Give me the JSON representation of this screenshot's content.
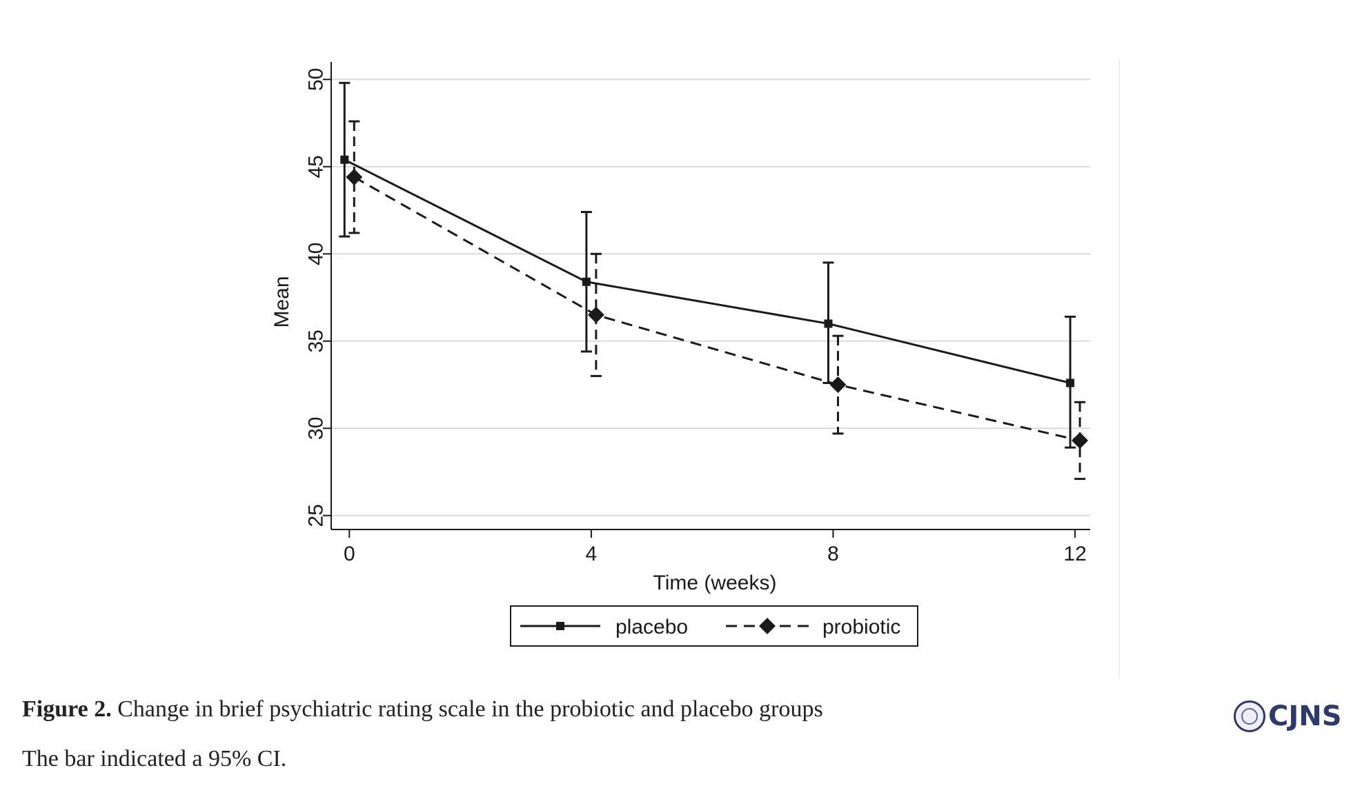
{
  "chart_data": {
    "type": "line",
    "xlabel": "Time (weeks)",
    "ylabel": "Mean",
    "x_ticks": [
      "0",
      "4",
      "8",
      "12"
    ],
    "y_ticks": [
      "25",
      "30",
      "35",
      "40",
      "45",
      "50"
    ],
    "xlim": [
      -0.3,
      12.25
    ],
    "ylim": [
      24.2,
      50.8
    ],
    "grid": true,
    "legend_position": "bottom-center",
    "series": [
      {
        "name": "placebo",
        "style": "solid",
        "marker": "square",
        "color": "#1a1a1a",
        "x_offset": -0.08,
        "x": [
          0,
          4,
          8,
          12
        ],
        "y": [
          45.4,
          38.4,
          36.0,
          32.6
        ],
        "ci_lower": [
          41.0,
          34.4,
          32.6,
          28.9
        ],
        "ci_upper": [
          49.8,
          42.4,
          39.5,
          36.4
        ]
      },
      {
        "name": "probiotic",
        "style": "dashed",
        "marker": "diamond",
        "color": "#1a1a1a",
        "x_offset": 0.08,
        "x": [
          0,
          4,
          8,
          12
        ],
        "y": [
          44.4,
          36.5,
          32.5,
          29.3
        ],
        "ci_lower": [
          41.2,
          33.0,
          29.7,
          27.1
        ],
        "ci_upper": [
          47.6,
          40.0,
          35.3,
          31.5
        ]
      }
    ]
  },
  "caption": {
    "figure_label": "Figure 2.",
    "title": "Change in brief psychiatric rating scale in the probiotic and placebo groups",
    "note": "The bar indicated a 95% CI."
  },
  "brand": {
    "name": "CJNS",
    "logo": "journal-seal-icon"
  },
  "colors": {
    "line": "#1a1a1a",
    "grid": "#d9d9d9",
    "brand": "#2e3a6b"
  }
}
